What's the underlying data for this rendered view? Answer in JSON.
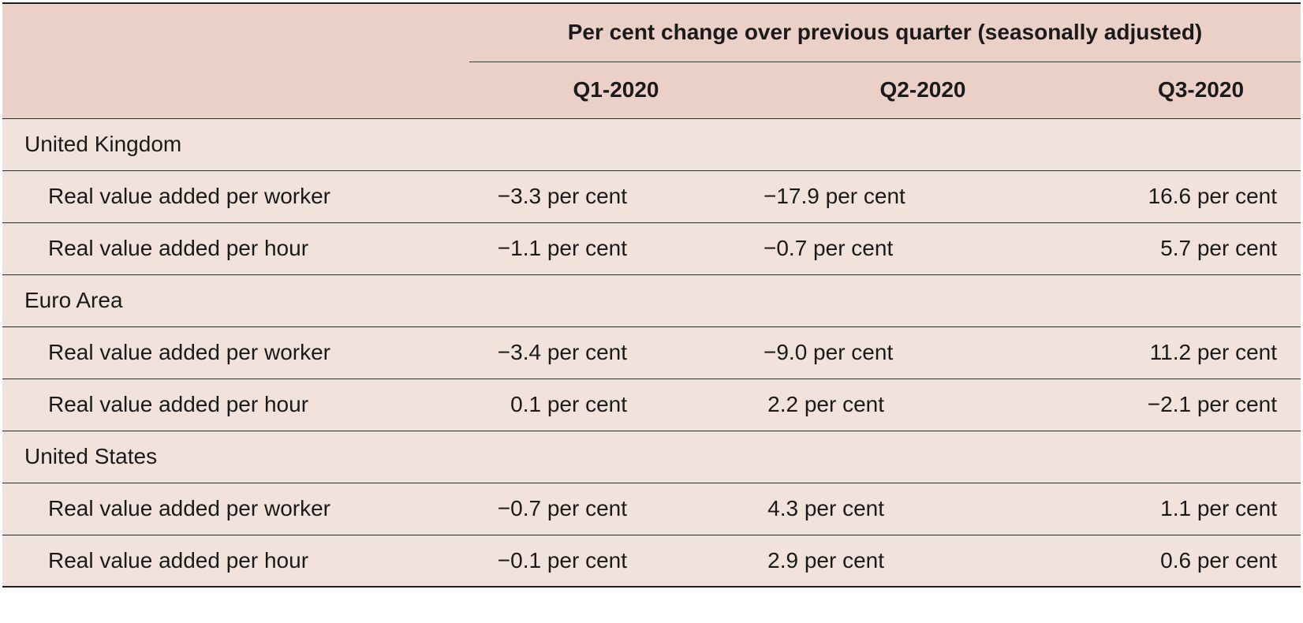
{
  "table": {
    "header_span": "Per cent change over previous quarter (seasonally adjusted)",
    "columns": [
      "Q1-2020",
      "Q2-2020",
      "Q3-2020"
    ],
    "groups": [
      {
        "name": "United Kingdom",
        "rows": [
          {
            "label": "Real value added per worker",
            "values": [
              "−3.3 per cent",
              "−17.9 per cent",
              "16.6 per cent"
            ]
          },
          {
            "label": "Real value added per hour",
            "values": [
              "−1.1 per cent",
              "−0.7 per cent",
              "5.7 per cent"
            ]
          }
        ]
      },
      {
        "name": "Euro Area",
        "rows": [
          {
            "label": "Real value added per worker",
            "values": [
              "−3.4 per cent",
              "−9.0 per cent",
              "11.2 per cent"
            ]
          },
          {
            "label": "Real value added per hour",
            "values": [
              "0.1 per cent",
              "2.2 per cent",
              "−2.1 per cent"
            ]
          }
        ]
      },
      {
        "name": "United States",
        "rows": [
          {
            "label": "Real value added per worker",
            "values": [
              "−0.7 per cent",
              "4.3 per cent",
              "1.1 per cent"
            ]
          },
          {
            "label": "Real value added per hour",
            "values": [
              "−0.1 per cent",
              "2.9 per cent",
              "0.6 per cent"
            ]
          }
        ]
      }
    ]
  }
}
